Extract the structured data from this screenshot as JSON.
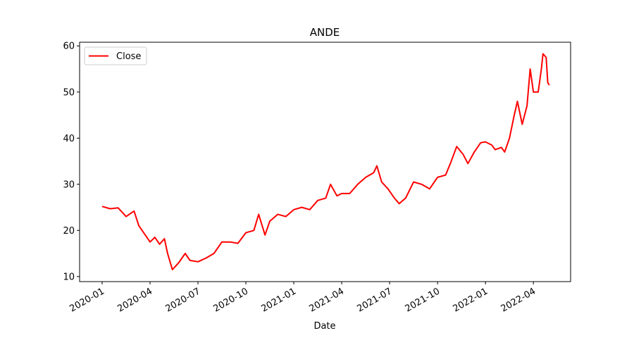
{
  "chart_data": {
    "type": "line",
    "title": "ANDE",
    "x_label": "Date",
    "series": [
      {
        "name": "Close",
        "color": "#ff0000",
        "x": [
          0,
          0.5,
          1.0,
          1.5,
          2.0,
          2.3,
          2.7,
          3.0,
          3.3,
          3.6,
          3.9,
          4.1,
          4.4,
          4.8,
          5.2,
          5.5,
          6.0,
          6.5,
          7.0,
          7.5,
          8.0,
          8.5,
          9.0,
          9.5,
          9.8,
          10.2,
          10.5,
          11.0,
          11.5,
          12.0,
          12.5,
          13.0,
          13.5,
          14.0,
          14.3,
          14.7,
          15.0,
          15.5,
          16.0,
          16.5,
          17.0,
          17.2,
          17.5,
          17.9,
          18.3,
          18.6,
          19.0,
          19.5,
          20.0,
          20.5,
          21.0,
          21.5,
          21.8,
          22.2,
          22.6,
          22.9,
          23.3,
          23.7,
          24.0,
          24.4,
          24.6,
          25.0,
          25.2,
          25.5,
          25.8,
          26.0,
          26.3,
          26.6,
          26.8,
          27.0,
          27.3,
          27.5,
          27.6,
          27.8,
          27.9,
          28.0
        ],
        "values": [
          25.2,
          24.7,
          24.9,
          23.0,
          24.2,
          21.0,
          19.0,
          17.5,
          18.5,
          17.0,
          18.2,
          15.0,
          11.5,
          13.0,
          15.0,
          13.5,
          13.2,
          14.0,
          15.0,
          17.5,
          17.5,
          17.2,
          19.5,
          20.0,
          23.5,
          19.0,
          22.0,
          23.5,
          23.0,
          24.5,
          25.0,
          24.5,
          26.5,
          27.0,
          30.0,
          27.5,
          28.0,
          28.0,
          30.0,
          31.5,
          32.5,
          34.0,
          30.5,
          29.0,
          27.0,
          25.8,
          27.0,
          30.5,
          30.0,
          29.0,
          31.5,
          32.0,
          34.5,
          38.2,
          36.5,
          34.5,
          37.0,
          39.0,
          39.2,
          38.5,
          37.5,
          38.0,
          37.0,
          40.0,
          45.0,
          48.0,
          43.0,
          47.0,
          55.0,
          50.0,
          50.0,
          55.0,
          58.3,
          57.5,
          52.0,
          51.5
        ]
      }
    ],
    "xlim": [
      -1.41,
      29.33
    ],
    "xticks": [
      {
        "value": 0,
        "label": "2020-01"
      },
      {
        "value": 3,
        "label": "2020-04"
      },
      {
        "value": 6,
        "label": "2020-07"
      },
      {
        "value": 9,
        "label": "2020-10"
      },
      {
        "value": 12,
        "label": "2021-01"
      },
      {
        "value": 15,
        "label": "2021-04"
      },
      {
        "value": 18,
        "label": "2021-07"
      },
      {
        "value": 21,
        "label": "2021-10"
      },
      {
        "value": 24,
        "label": "2022-01"
      },
      {
        "value": 27,
        "label": "2022-04"
      }
    ],
    "ylim": [
      8.9,
      60.8
    ],
    "yticks": [
      10,
      20,
      30,
      40,
      50,
      60
    ],
    "legend": "upper left",
    "grid": false
  }
}
